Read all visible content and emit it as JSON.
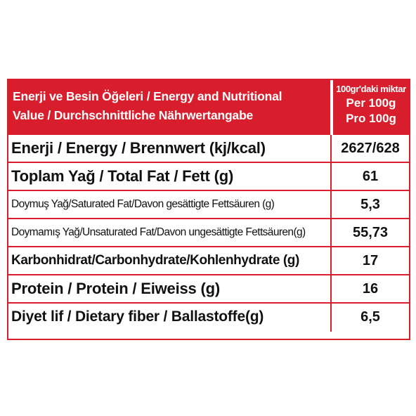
{
  "colors": {
    "accent": "#d81e2c",
    "header_text": "#ffffff",
    "body_text": "#111111"
  },
  "header": {
    "title_line1": "Enerji ve Besin Öğeleri / Energy and Nutritional",
    "title_line2": "Value / Durchschnittliche Nährwertangabe",
    "per_tr": "100gr'daki miktar",
    "per_en": "Per 100g",
    "per_de": "Pro 100g"
  },
  "rows": [
    {
      "label": "Enerji / Energy / Brennwert (kj/kcal)",
      "value": "2627/628"
    },
    {
      "label": "Toplam Yağ / Total Fat / Fett (g)",
      "value": "61"
    },
    {
      "label": "Doymuş Yağ/Saturated Fat/Davon gesättigte Fettsäuren (g)",
      "value": "5,3"
    },
    {
      "label": "Doymamış Yağ/Unsaturated Fat/Davon ungesättigte Fettsäuren(g)",
      "value": "55,73"
    },
    {
      "label": "Karbonhidrat/Carbonhydrate/Kohlenhydrate (g)",
      "value": "17"
    },
    {
      "label": "Protein / Protein / Eiweiss (g)",
      "value": "16"
    },
    {
      "label": "Diyet lif / Dietary fiber / Ballastoffe(g)",
      "value": "6,5"
    }
  ]
}
